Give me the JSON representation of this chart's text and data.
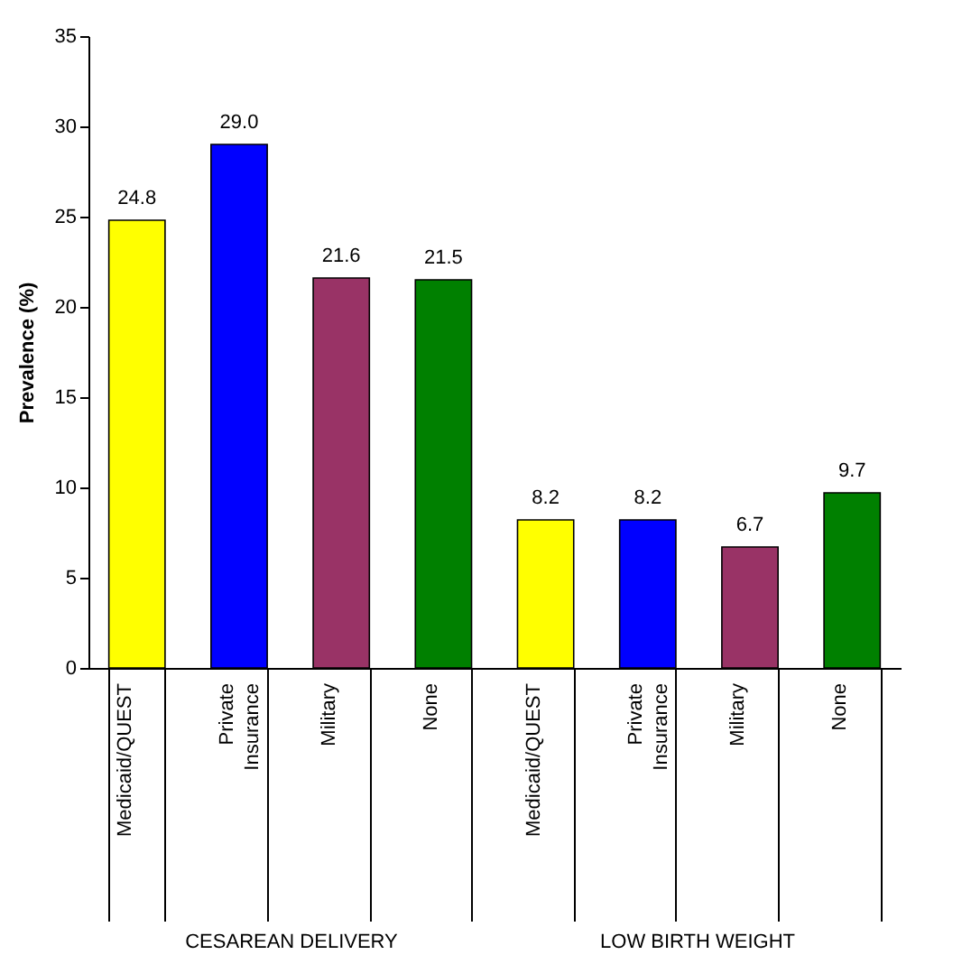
{
  "chart_data": {
    "type": "bar",
    "ylabel": "Prevalence (%)",
    "categories": [
      "Medicaid/QUEST",
      "Private Insurance",
      "Military",
      "None",
      "Medicaid/QUEST",
      "Private Insurance",
      "Military",
      "None"
    ],
    "values": [
      24.8,
      29.0,
      21.6,
      21.5,
      8.2,
      8.2,
      6.7,
      9.7
    ],
    "value_labels": [
      "24.8",
      "29.0",
      "21.6",
      "21.5",
      "8.2",
      "8.2",
      "6.7",
      "9.7"
    ],
    "colors": [
      "#ffff00",
      "#0000ff",
      "#993366",
      "#008000",
      "#ffff00",
      "#0000ff",
      "#993366",
      "#008000"
    ],
    "ylim": [
      0,
      35
    ],
    "yticks": [
      0,
      5,
      10,
      15,
      20,
      25,
      30,
      35
    ],
    "grid": false,
    "annotations": [
      "CESAREAN DELIVERY",
      "LOW BIRTH WEIGHT"
    ]
  }
}
